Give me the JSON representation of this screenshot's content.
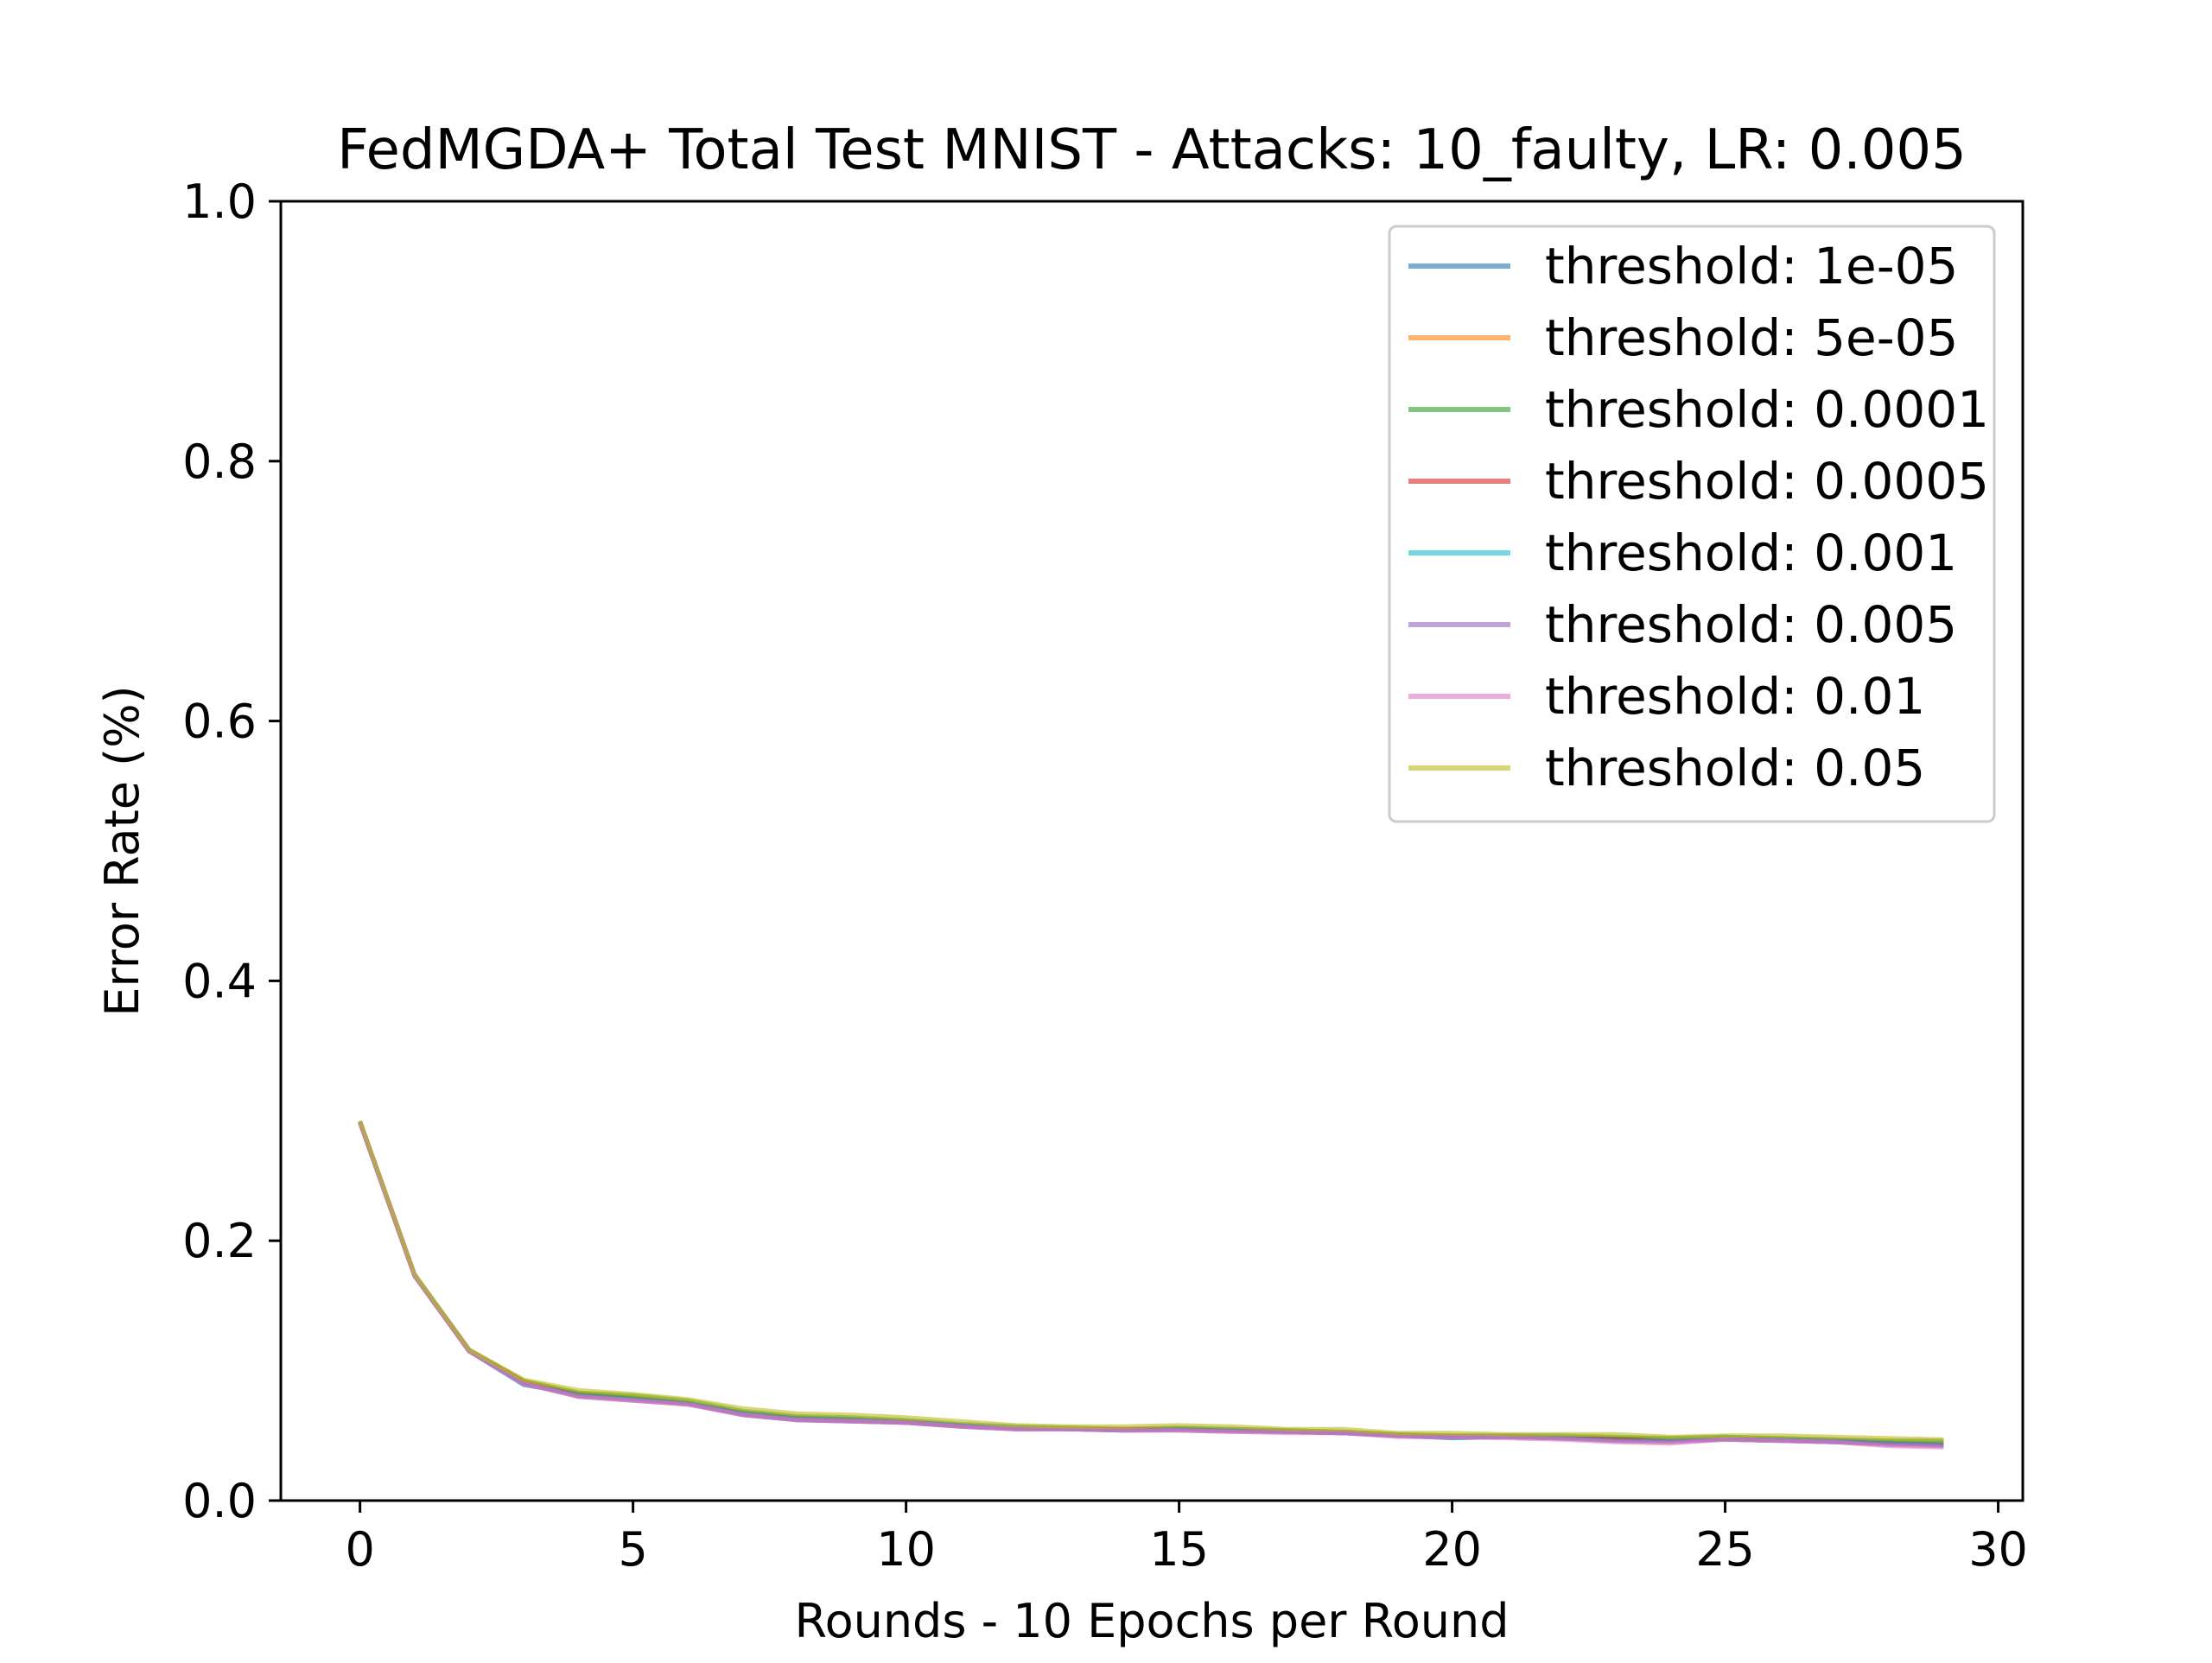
{
  "chart_data": {
    "type": "line",
    "title": "FedMGDA+ Total Test MNIST - Attacks: 10_faulty, LR: 0.005",
    "xlabel": "Rounds - 10 Epochs per Round",
    "ylabel": "Error Rate (%)",
    "xlim": [
      -1.45,
      30.45
    ],
    "ylim": [
      0.0,
      1.0
    ],
    "xticks": [
      0,
      5,
      10,
      15,
      20,
      25,
      30
    ],
    "xtick_labels": [
      "0",
      "5",
      "10",
      "15",
      "20",
      "25",
      "30"
    ],
    "yticks": [
      0.0,
      0.2,
      0.4,
      0.6,
      0.8,
      1.0
    ],
    "ytick_labels": [
      "0.0",
      "0.2",
      "0.4",
      "0.6",
      "0.8",
      "1.0"
    ],
    "grid": false,
    "legend_position": "upper right",
    "x": [
      0,
      1,
      2,
      3,
      4,
      5,
      6,
      7,
      8,
      9,
      10,
      11,
      12,
      13,
      14,
      15,
      16,
      17,
      18,
      19,
      20,
      21,
      22,
      23,
      24,
      25,
      26,
      27,
      28,
      29
    ],
    "series": [
      {
        "name": "threshold: 1e-05",
        "color": "#1f77b4",
        "values": [
          0.291,
          0.173,
          0.115,
          0.089,
          0.082,
          0.079,
          0.075,
          0.066,
          0.062,
          0.061,
          0.06,
          0.057,
          0.055,
          0.055,
          0.054,
          0.055,
          0.054,
          0.053,
          0.052,
          0.05,
          0.048,
          0.049,
          0.048,
          0.047,
          0.047,
          0.047,
          0.046,
          0.045,
          0.044,
          0.043
        ]
      },
      {
        "name": "threshold: 5e-05",
        "color": "#ff7f0e",
        "values": [
          0.292,
          0.174,
          0.116,
          0.092,
          0.083,
          0.08,
          0.076,
          0.068,
          0.064,
          0.063,
          0.061,
          0.058,
          0.056,
          0.056,
          0.055,
          0.056,
          0.055,
          0.054,
          0.053,
          0.051,
          0.05,
          0.05,
          0.049,
          0.048,
          0.048,
          0.049,
          0.048,
          0.047,
          0.046,
          0.045
        ]
      },
      {
        "name": "threshold: 0.0001",
        "color": "#2ca02c",
        "values": [
          0.292,
          0.174,
          0.116,
          0.092,
          0.083,
          0.081,
          0.077,
          0.069,
          0.065,
          0.064,
          0.062,
          0.059,
          0.057,
          0.056,
          0.055,
          0.056,
          0.055,
          0.054,
          0.053,
          0.051,
          0.05,
          0.05,
          0.05,
          0.049,
          0.048,
          0.049,
          0.048,
          0.047,
          0.046,
          0.046
        ]
      },
      {
        "name": "threshold: 0.0005",
        "color": "#d62728",
        "values": [
          0.291,
          0.173,
          0.115,
          0.091,
          0.081,
          0.078,
          0.075,
          0.067,
          0.063,
          0.062,
          0.06,
          0.058,
          0.056,
          0.055,
          0.055,
          0.055,
          0.054,
          0.053,
          0.052,
          0.05,
          0.049,
          0.049,
          0.048,
          0.047,
          0.046,
          0.048,
          0.047,
          0.046,
          0.044,
          0.043
        ]
      },
      {
        "name": "threshold: 0.001",
        "color": "#17becf",
        "values": [
          0.291,
          0.173,
          0.115,
          0.09,
          0.081,
          0.078,
          0.075,
          0.067,
          0.063,
          0.062,
          0.06,
          0.058,
          0.056,
          0.055,
          0.054,
          0.055,
          0.054,
          0.053,
          0.052,
          0.05,
          0.049,
          0.049,
          0.048,
          0.046,
          0.046,
          0.048,
          0.047,
          0.046,
          0.044,
          0.043
        ]
      },
      {
        "name": "threshold: 0.005",
        "color": "#9467bd",
        "values": [
          0.291,
          0.173,
          0.115,
          0.09,
          0.08,
          0.077,
          0.074,
          0.066,
          0.062,
          0.061,
          0.06,
          0.057,
          0.055,
          0.055,
          0.054,
          0.054,
          0.053,
          0.053,
          0.052,
          0.05,
          0.049,
          0.049,
          0.048,
          0.046,
          0.045,
          0.047,
          0.046,
          0.045,
          0.043,
          0.042
        ]
      },
      {
        "name": "threshold: 0.01",
        "color": "#e377c2",
        "values": [
          0.291,
          0.173,
          0.115,
          0.09,
          0.08,
          0.077,
          0.074,
          0.066,
          0.062,
          0.061,
          0.06,
          0.057,
          0.055,
          0.055,
          0.054,
          0.054,
          0.053,
          0.052,
          0.052,
          0.049,
          0.049,
          0.048,
          0.047,
          0.045,
          0.044,
          0.047,
          0.046,
          0.045,
          0.042,
          0.041
        ]
      },
      {
        "name": "threshold: 0.05",
        "color": "#bcbd22",
        "values": [
          0.292,
          0.174,
          0.116,
          0.093,
          0.085,
          0.082,
          0.078,
          0.071,
          0.067,
          0.066,
          0.064,
          0.061,
          0.058,
          0.057,
          0.057,
          0.058,
          0.057,
          0.055,
          0.055,
          0.052,
          0.052,
          0.051,
          0.051,
          0.051,
          0.049,
          0.05,
          0.05,
          0.049,
          0.048,
          0.047
        ]
      }
    ]
  }
}
